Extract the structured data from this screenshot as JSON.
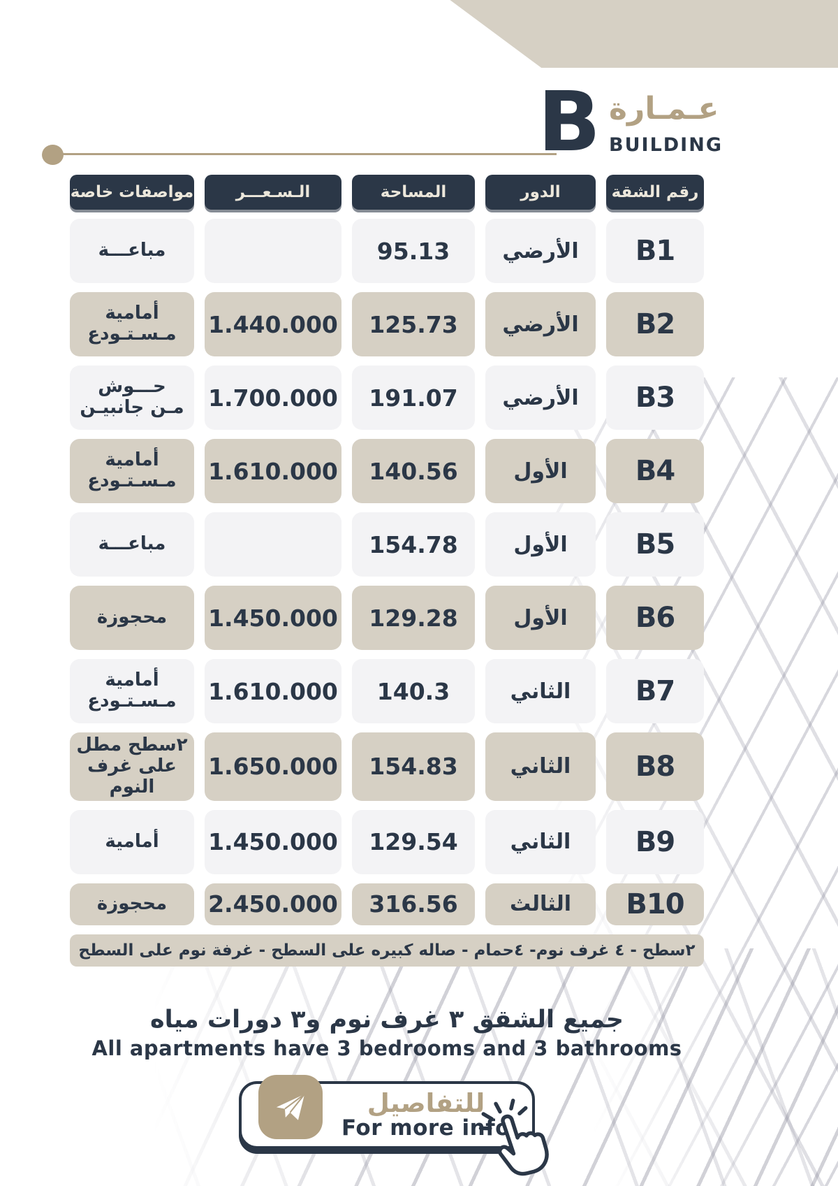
{
  "header": {
    "title_ar": "عـمـارة",
    "building_letter": "B",
    "title_en": "BUILDING"
  },
  "table": {
    "columns": [
      {
        "key": "apt",
        "label": "رقم الشقة"
      },
      {
        "key": "floor",
        "label": "الدور"
      },
      {
        "key": "area",
        "label": "المساحة"
      },
      {
        "key": "price",
        "label": "الـسـعـــر"
      },
      {
        "key": "specs",
        "label": "مواصفات خاصة"
      }
    ],
    "rows": [
      {
        "apt": "B1",
        "floor": "الأرضي",
        "area": "95.13",
        "price": "",
        "specs": "مباعـــة",
        "highlight": false,
        "compact": false
      },
      {
        "apt": "B2",
        "floor": "الأرضي",
        "area": "125.73",
        "price": "1.440.000",
        "specs": "أمامية\nمـسـتـودع",
        "highlight": true,
        "compact": false
      },
      {
        "apt": "B3",
        "floor": "الأرضي",
        "area": "191.07",
        "price": "1.700.000",
        "specs": "حـــوش\nمـن جانبيـن",
        "highlight": false,
        "compact": false
      },
      {
        "apt": "B4",
        "floor": "الأول",
        "area": "140.56",
        "price": "1.610.000",
        "specs": "أمامية\nمـسـتـودع",
        "highlight": true,
        "compact": false
      },
      {
        "apt": "B5",
        "floor": "الأول",
        "area": "154.78",
        "price": "",
        "specs": "مباعـــة",
        "highlight": false,
        "compact": false
      },
      {
        "apt": "B6",
        "floor": "الأول",
        "area": "129.28",
        "price": "1.450.000",
        "specs": "محجوزة",
        "highlight": true,
        "compact": false
      },
      {
        "apt": "B7",
        "floor": "الثاني",
        "area": "140.3",
        "price": "1.610.000",
        "specs": "أمامية\nمـسـتـودع",
        "highlight": false,
        "compact": false
      },
      {
        "apt": "B8",
        "floor": "الثاني",
        "area": "154.83",
        "price": "1.650.000",
        "specs": "٢سطح مطل\nعلى غرف\nالنوم",
        "highlight": true,
        "compact": false
      },
      {
        "apt": "B9",
        "floor": "الثاني",
        "area": "129.54",
        "price": "1.450.000",
        "specs": "أمامية",
        "highlight": false,
        "compact": false
      },
      {
        "apt": "B10",
        "floor": "الثالث",
        "area": "316.56",
        "price": "2.450.000",
        "specs": "محجوزة",
        "highlight": true,
        "compact": true
      }
    ],
    "footnote": "٢سطح - ٤ غرف نوم- ٤حمام -  صاله كبيره على السطح - غرفة نوم على السطح"
  },
  "notes": {
    "ar": "جميع الشقق ٣ غرف نوم و٣ دورات مياه",
    "en": "All apartments have 3 bedrooms and 3 bathrooms"
  },
  "cta": {
    "label_ar": "للتفاصيل",
    "label_en": "For more info",
    "icon": "paper-plane-icon",
    "cursor": "click-hand-icon"
  },
  "colors": {
    "navy": "#2b3747",
    "tan": "#b2a183",
    "beige_cell": "#d6d0c4",
    "light_cell": "#f3f3f5",
    "header_text": "#ece7db"
  }
}
